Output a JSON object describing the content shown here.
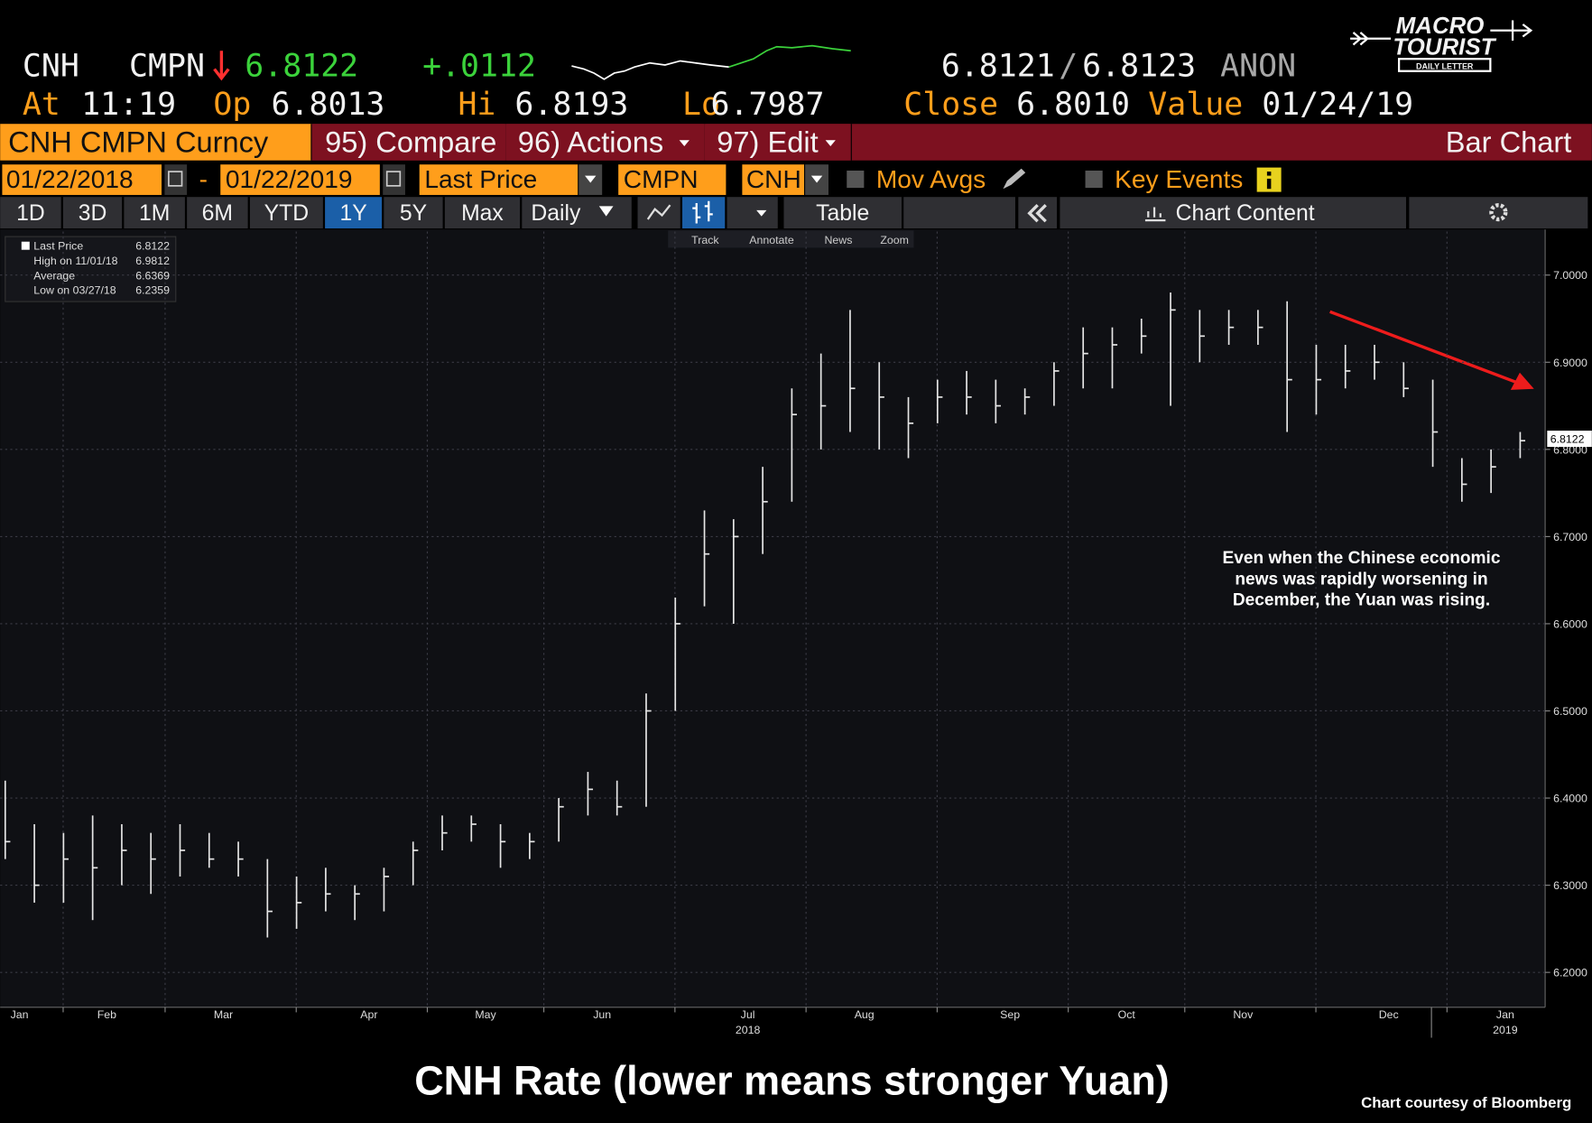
{
  "header": {
    "ticker": "CNH",
    "source": "CMPN",
    "last": "6.8122",
    "change": "+.0112",
    "bid": "6.8121",
    "separator": "/",
    "ask": "6.8123",
    "quote_source": "ANON",
    "at_label": "At",
    "at": "11:19",
    "open_label": "Op",
    "open": "6.8013",
    "high_label": "Hi",
    "high": "6.8193",
    "low_label": "Lo",
    "low": "6.7987",
    "close_label": "Close",
    "close": "6.8010",
    "value_label": "Value",
    "value_date": "01/24/19"
  },
  "logo": {
    "line1": "MACRO",
    "line2": "TOURIST",
    "tagline": "DAILY LETTER"
  },
  "menu": {
    "security": "CNH CMPN Curncy",
    "compare": "95) Compare",
    "actions": "96) Actions",
    "edit": "97) Edit",
    "view": "Bar Chart"
  },
  "controls": {
    "start_date": "01/22/2018",
    "dash": "-",
    "end_date": "01/22/2019",
    "field": "Last Price",
    "source": "CMPN",
    "currency": "CNH",
    "moving_averages": "Mov Avgs",
    "key_events": "Key Events"
  },
  "toolbar": {
    "ranges": [
      "1D",
      "3D",
      "1M",
      "6M",
      "YTD",
      "1Y",
      "5Y",
      "Max"
    ],
    "frequency": "Daily",
    "table": "Table",
    "chart_content": "Chart Content"
  },
  "chart_tools": [
    "Track",
    "Annotate",
    "News",
    "Zoom"
  ],
  "chart_data": {
    "type": "ohlc",
    "color": "#e6e6e6",
    "categories": [
      "Jan",
      null,
      null,
      "Feb",
      null,
      null,
      null,
      "Mar",
      null,
      null,
      null,
      null,
      "Apr",
      null,
      null,
      null,
      "May",
      null,
      null,
      null,
      "Jun",
      null,
      null,
      null,
      null,
      "Jul",
      null,
      null,
      null,
      "Aug",
      null,
      null,
      null,
      null,
      "Sep",
      null,
      null,
      null,
      "Oct",
      null,
      null,
      null,
      "Nov",
      null,
      null,
      null,
      null,
      "Dec",
      null,
      null,
      null,
      "Jan",
      null
    ],
    "year_labels": [
      null,
      null,
      null,
      null,
      null,
      null,
      null,
      null,
      null,
      null,
      null,
      null,
      null,
      null,
      null,
      null,
      null,
      null,
      null,
      null,
      null,
      null,
      null,
      null,
      null,
      "2018",
      null,
      null,
      null,
      null,
      null,
      null,
      null,
      null,
      null,
      null,
      null,
      null,
      null,
      null,
      null,
      null,
      null,
      null,
      null,
      null,
      null,
      null,
      null,
      null,
      null,
      "2019",
      null
    ],
    "high": [
      6.42,
      6.37,
      6.36,
      6.38,
      6.37,
      6.36,
      6.37,
      6.36,
      6.35,
      6.33,
      6.31,
      6.32,
      6.3,
      6.32,
      6.35,
      6.38,
      6.38,
      6.37,
      6.36,
      6.4,
      6.43,
      6.42,
      6.52,
      6.63,
      6.73,
      6.72,
      6.78,
      6.87,
      6.91,
      6.96,
      6.9,
      6.86,
      6.88,
      6.89,
      6.88,
      6.87,
      6.9,
      6.94,
      6.94,
      6.95,
      6.98,
      6.96,
      6.96,
      6.96,
      6.97,
      6.92,
      6.92,
      6.92,
      6.9,
      6.88,
      6.79,
      6.8,
      6.82
    ],
    "low": [
      6.33,
      6.28,
      6.28,
      6.26,
      6.3,
      6.29,
      6.31,
      6.32,
      6.31,
      6.24,
      6.25,
      6.27,
      6.26,
      6.27,
      6.3,
      6.34,
      6.35,
      6.32,
      6.33,
      6.35,
      6.38,
      6.38,
      6.39,
      6.5,
      6.62,
      6.6,
      6.68,
      6.74,
      6.8,
      6.82,
      6.8,
      6.79,
      6.83,
      6.84,
      6.83,
      6.84,
      6.85,
      6.87,
      6.87,
      6.91,
      6.85,
      6.9,
      6.92,
      6.92,
      6.82,
      6.84,
      6.87,
      6.88,
      6.86,
      6.78,
      6.74,
      6.75,
      6.79
    ],
    "close": [
      6.35,
      6.3,
      6.33,
      6.32,
      6.34,
      6.33,
      6.34,
      6.33,
      6.33,
      6.27,
      6.28,
      6.29,
      6.29,
      6.31,
      6.34,
      6.36,
      6.37,
      6.35,
      6.35,
      6.39,
      6.41,
      6.39,
      6.5,
      6.6,
      6.68,
      6.7,
      6.74,
      6.84,
      6.85,
      6.87,
      6.86,
      6.83,
      6.86,
      6.86,
      6.85,
      6.86,
      6.89,
      6.91,
      6.92,
      6.93,
      6.96,
      6.93,
      6.94,
      6.94,
      6.88,
      6.88,
      6.89,
      6.9,
      6.87,
      6.82,
      6.76,
      6.78,
      6.81
    ],
    "ylim": [
      6.16,
      7.05
    ],
    "yticks": [
      {
        "value": 6.2,
        "label": "6.2000"
      },
      {
        "value": 6.3,
        "label": "6.3000"
      },
      {
        "value": 6.4,
        "label": "6.4000"
      },
      {
        "value": 6.5,
        "label": "6.5000"
      },
      {
        "value": 6.6,
        "label": "6.6000"
      },
      {
        "value": 6.7,
        "label": "6.7000"
      },
      {
        "value": 6.8,
        "label": "6.8000"
      },
      {
        "value": 6.9,
        "label": "6.9000"
      },
      {
        "value": 7.0,
        "label": "7.0000"
      }
    ],
    "grid": true,
    "stats": [
      {
        "label": "Last Price",
        "value": 6.8122
      },
      {
        "label": "High on 11/01/18",
        "value": 6.9812
      },
      {
        "label": "Average",
        "value": 6.6369
      },
      {
        "label": "Low on 03/27/18",
        "value": 6.2359
      }
    ],
    "annotation": [
      "Even when the Chinese economic",
      "news was rapidly worsening in",
      "December, the Yuan was rising."
    ],
    "title": "CNH Rate (lower means stronger Yuan)",
    "credit": "Chart courtesy of Bloomberg"
  }
}
